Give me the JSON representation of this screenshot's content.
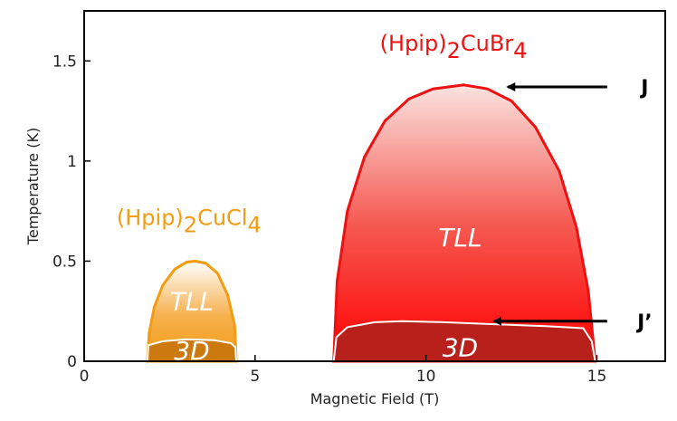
{
  "chart_data": {
    "type": "area",
    "xlabel": "Magnetic Field (T)",
    "ylabel": "Temperature (K)",
    "xlim": [
      0,
      17
    ],
    "ylim": [
      0,
      1.75
    ],
    "xticks": [
      0,
      5,
      10,
      15
    ],
    "yticks": [
      0,
      0.5,
      1,
      1.5
    ],
    "xtick_labels": [
      "0",
      "5",
      "10",
      "15"
    ],
    "ytick_labels": [
      "0",
      "0.5",
      "1",
      "1.5"
    ],
    "grid": false,
    "legend": "none",
    "series": [
      {
        "name": "(Hpip)2CuCl4",
        "color": "#f39c12",
        "regions": [
          {
            "label": "TLL",
            "boundary": [
              [
                1.85,
                0.0
              ],
              [
                1.9,
                0.14
              ],
              [
                2.05,
                0.27
              ],
              [
                2.3,
                0.38
              ],
              [
                2.65,
                0.46
              ],
              [
                3.0,
                0.495
              ],
              [
                3.25,
                0.5
              ],
              [
                3.55,
                0.49
              ],
              [
                3.9,
                0.44
              ],
              [
                4.2,
                0.33
              ],
              [
                4.4,
                0.18
              ],
              [
                4.45,
                0.0
              ]
            ]
          },
          {
            "label": "3D",
            "boundary": [
              [
                1.85,
                0.0
              ],
              [
                1.88,
                0.08
              ],
              [
                2.3,
                0.1
              ],
              [
                3.0,
                0.11
              ],
              [
                3.8,
                0.105
              ],
              [
                4.3,
                0.09
              ],
              [
                4.42,
                0.07
              ],
              [
                4.45,
                0.0
              ]
            ]
          }
        ]
      },
      {
        "name": "(Hpip)2CuBr4",
        "color": "#ee1111",
        "regions": [
          {
            "label": "TLL",
            "boundary": [
              [
                7.3,
                0.0
              ],
              [
                7.4,
                0.4
              ],
              [
                7.7,
                0.75
              ],
              [
                8.2,
                1.02
              ],
              [
                8.8,
                1.2
              ],
              [
                9.5,
                1.31
              ],
              [
                10.2,
                1.36
              ],
              [
                11.1,
                1.38
              ],
              [
                11.8,
                1.36
              ],
              [
                12.5,
                1.3
              ],
              [
                13.2,
                1.17
              ],
              [
                13.9,
                0.95
              ],
              [
                14.4,
                0.67
              ],
              [
                14.75,
                0.35
              ],
              [
                14.95,
                0.0
              ]
            ]
          },
          {
            "label": "3D",
            "boundary": [
              [
                7.3,
                0.0
              ],
              [
                7.38,
                0.12
              ],
              [
                7.7,
                0.17
              ],
              [
                8.5,
                0.195
              ],
              [
                9.3,
                0.2
              ],
              [
                10.5,
                0.195
              ],
              [
                12.0,
                0.185
              ],
              [
                13.5,
                0.175
              ],
              [
                14.6,
                0.165
              ],
              [
                14.85,
                0.1
              ],
              [
                14.95,
                0.0
              ]
            ]
          }
        ]
      }
    ],
    "annotations": [
      {
        "id": "cl4_tll",
        "text": "TLL",
        "x": 3.15,
        "y": 0.3
      },
      {
        "id": "cl4_3d",
        "text": "3D",
        "x": 3.15,
        "y": 0.055
      },
      {
        "id": "br4_tll",
        "text": "TLL",
        "x": 11.0,
        "y": 0.62
      },
      {
        "id": "br4_3d",
        "text": "3D",
        "x": 11.0,
        "y": 0.07
      },
      {
        "id": "cl4_name",
        "prefix": "(Hpip)",
        "sub1": "2",
        "mid": "CuCl",
        "sub2": "4",
        "x": 0.95,
        "y": 0.68,
        "color": "#f39c12"
      },
      {
        "id": "br4_name",
        "prefix": "(Hpip)",
        "sub1": "2",
        "mid": "CuBr",
        "sub2": "4",
        "x": 8.65,
        "y": 1.55,
        "color": "#ee1111"
      },
      {
        "id": "arrow_J",
        "text": "J",
        "tail": [
          15.3,
          1.37
        ],
        "head": [
          12.4,
          1.37
        ],
        "label_pos": [
          16.4,
          1.37
        ]
      },
      {
        "id": "arrow_Jp",
        "text": "J’",
        "tail": [
          15.3,
          0.2
        ],
        "head": [
          12.0,
          0.2
        ],
        "label_pos": [
          16.4,
          0.2
        ]
      }
    ]
  }
}
